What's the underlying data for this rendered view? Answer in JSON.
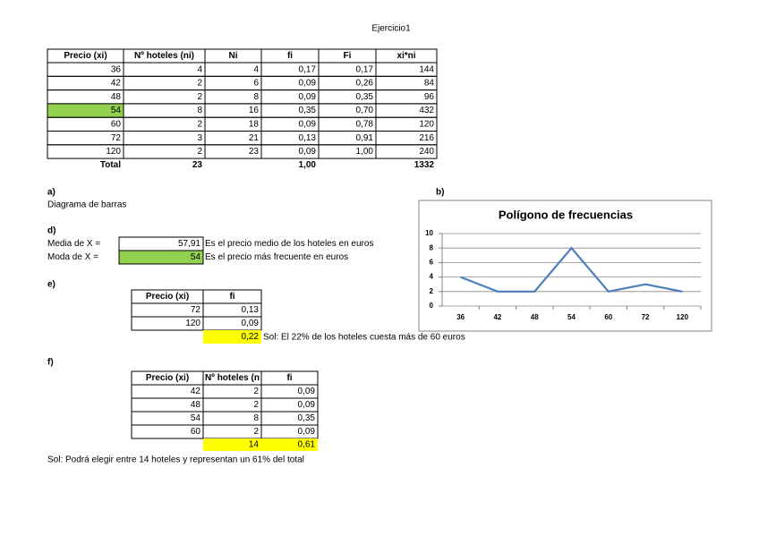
{
  "title": "Ejercicio1",
  "main_table": {
    "header": [
      "Precio (xi)",
      "Nº hoteles (ni)",
      "Ni",
      "fi",
      "Fi",
      "xi*ni"
    ],
    "rows": [
      [
        "36",
        "4",
        "4",
        "0,17",
        "0,17",
        "144"
      ],
      [
        "42",
        "2",
        "6",
        "0,09",
        "0,26",
        "84"
      ],
      [
        "48",
        "2",
        "8",
        "0,09",
        "0,35",
        "96"
      ],
      [
        "54",
        "8",
        "16",
        "0,35",
        "0,70",
        "432"
      ],
      [
        "60",
        "2",
        "18",
        "0,09",
        "0,78",
        "120"
      ],
      [
        "72",
        "3",
        "21",
        "0,13",
        "0,91",
        "216"
      ],
      [
        "120",
        "2",
        "23",
        "0,09",
        "1,00",
        "240"
      ]
    ],
    "total": {
      "label": "Total",
      "ni": "23",
      "fi": "1,00",
      "xini": "1332"
    }
  },
  "section_a": {
    "label": "a)",
    "text": "Diagrama de barras"
  },
  "section_b": {
    "label": "b)"
  },
  "section_d": {
    "label": "d)",
    "rows": [
      {
        "label": "Media de X =",
        "value": "57,91",
        "note": "Es el precio medio de los hoteles en euros"
      },
      {
        "label": "Moda de X =",
        "value": "54",
        "note": "Es el precio más frecuente en euros"
      }
    ]
  },
  "section_e": {
    "label": "e)",
    "header": [
      "Precio (xi)",
      "fi"
    ],
    "rows": [
      [
        "72",
        "0,13"
      ],
      [
        "120",
        "0,09"
      ]
    ],
    "sum": "0,22",
    "solution": "Sol: El 22% de los hoteles cuesta más de 60 euros"
  },
  "section_f": {
    "label": "f)",
    "header": [
      "Precio (xi)",
      "Nº hoteles (n",
      "fi"
    ],
    "rows": [
      [
        "42",
        "2",
        "0,09"
      ],
      [
        "48",
        "2",
        "0,09"
      ],
      [
        "54",
        "8",
        "0,35"
      ],
      [
        "60",
        "2",
        "0,09"
      ]
    ],
    "sum": [
      "14",
      "0,61"
    ],
    "solution": "Sol: Podrá elegir entre 14 hoteles y representan un 61% del total"
  },
  "chart_data": {
    "type": "line",
    "title": "Polígono de frecuencias",
    "categories": [
      "36",
      "42",
      "48",
      "54",
      "60",
      "72",
      "120"
    ],
    "values": [
      4,
      2,
      2,
      8,
      2,
      3,
      2
    ],
    "color": "#4a7ebb",
    "ylim": [
      0,
      10
    ],
    "yticks": [
      0,
      2,
      4,
      6,
      8,
      10
    ],
    "grid": true
  }
}
